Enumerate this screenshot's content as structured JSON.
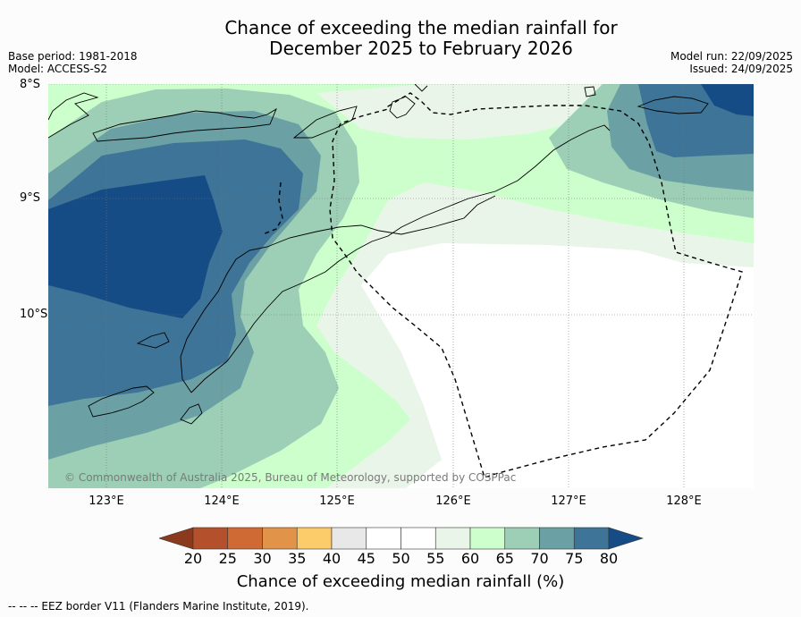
{
  "header": {
    "title_line1": "Chance of exceeding the median rainfall for",
    "title_line2": "December 2025 to February 2026",
    "base_period": "Base period: 1981-2018",
    "model": "Model: ACCESS-S2",
    "model_run": "Model run: 22/09/2025",
    "issued": "Issued: 24/09/2025"
  },
  "map": {
    "lat_labels": [
      "8°S",
      "9°S",
      "10°S"
    ],
    "lon_labels": [
      "123°E",
      "124°E",
      "125°E",
      "126°E",
      "127°E",
      "128°E"
    ],
    "copyright": "© Commonwealth of Australia 2025, Bureau of Meteorology, supported by COSPPac"
  },
  "colorbar": {
    "ticks": [
      "20",
      "25",
      "30",
      "35",
      "40",
      "45",
      "50",
      "55",
      "60",
      "65",
      "70",
      "75",
      "80"
    ],
    "colors": [
      "#8b3a1e",
      "#b4512c",
      "#cf6a35",
      "#e19449",
      "#fdcc6a",
      "#e8e8e8",
      "#ffffff",
      "#ffffff",
      "#eaf5e9",
      "#ccffcc",
      "#9ccfb6",
      "#6ba1a4",
      "#3d7497",
      "#164c85"
    ],
    "label": "Chance of exceeding median rainfall (%)"
  },
  "legend": {
    "eez_note": "--  --  -- EEZ border V11 (Flanders Marine Institute, 2019)."
  }
}
